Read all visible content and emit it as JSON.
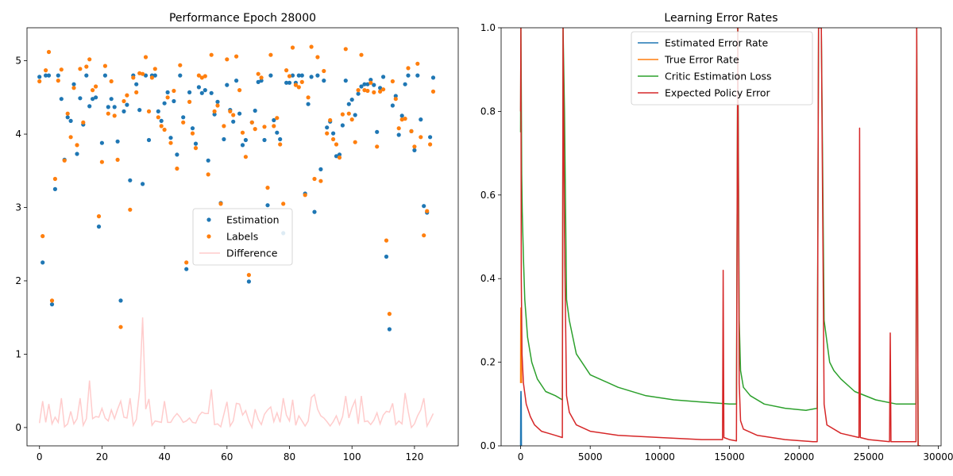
{
  "chart_data": [
    {
      "type": "scatter",
      "title": "Performance Epoch 28000",
      "xlim": [
        -4,
        134
      ],
      "ylim": [
        -0.25,
        5.45
      ],
      "x_ticks": [
        0,
        20,
        40,
        60,
        80,
        100,
        120
      ],
      "y_ticks": [
        0,
        1,
        2,
        3,
        4,
        5
      ],
      "legend_position": "center-right",
      "series": [
        {
          "name": "Estimation",
          "kind": "scatter",
          "color": "#1f77b4",
          "values": [
            4.78,
            2.25,
            4.8,
            4.8,
            1.68,
            3.25,
            4.8,
            4.48,
            3.65,
            4.23,
            4.18,
            4.68,
            3.73,
            4.49,
            4.13,
            4.8,
            4.38,
            4.48,
            4.5,
            2.74,
            3.88,
            4.8,
            4.37,
            4.48,
            4.37,
            3.9,
            1.73,
            4.31,
            4.4,
            3.37,
            4.8,
            4.68,
            4.33,
            3.32,
            4.8,
            3.92,
            4.8,
            4.8,
            4.31,
            4.18,
            4.42,
            4.57,
            3.95,
            4.45,
            3.72,
            4.8,
            4.23,
            2.16,
            4.57,
            4.08,
            3.87,
            4.64,
            4.56,
            4.6,
            3.64,
            4.56,
            4.27,
            4.44,
            3.06,
            3.93,
            4.67,
            4.33,
            4.17,
            4.73,
            4.28,
            3.85,
            3.92,
            1.99,
            4.16,
            4.32,
            4.71,
            4.73,
            3.92,
            3.03,
            4.8,
            4.19,
            4.02,
            3.93,
            2.65,
            4.7,
            4.7,
            4.8,
            4.7,
            4.8,
            4.8,
            3.19,
            4.41,
            4.78,
            2.94,
            4.8,
            3.52,
            4.73,
            4.09,
            4.17,
            4.01,
            3.7,
            3.72,
            4.12,
            4.73,
            4.41,
            4.47,
            4.26,
            4.55,
            4.65,
            4.68,
            4.68,
            4.74,
            4.67,
            4.03,
            4.63,
            4.78,
            2.33,
            1.34,
            4.39,
            4.52,
            3.99,
            4.25,
            4.68,
            4.8,
            4.04,
            3.78,
            4.8,
            4.2,
            3.02,
            2.93,
            3.96,
            4.77
          ]
        },
        {
          "name": "Labels",
          "kind": "scatter",
          "color": "#ff7f0e",
          "values": [
            4.72,
            2.61,
            4.87,
            5.12,
            1.73,
            3.39,
            4.73,
            4.88,
            3.64,
            4.28,
            3.96,
            4.63,
            3.85,
            4.89,
            4.16,
            4.92,
            5.02,
            4.6,
            4.65,
            2.88,
            3.62,
            4.93,
            4.28,
            4.72,
            4.25,
            3.65,
            1.37,
            4.45,
            4.53,
            2.97,
            4.77,
            4.57,
            4.83,
            4.82,
            5.05,
            4.31,
            4.77,
            4.89,
            4.23,
            4.11,
            4.06,
            4.5,
            3.88,
            4.59,
            3.53,
            4.94,
            4.16,
            2.25,
            4.44,
            4.01,
            3.81,
            4.8,
            4.77,
            4.79,
            3.45,
            5.08,
            4.31,
            4.39,
            3.05,
            4.11,
            5.02,
            4.31,
            4.26,
            5.06,
            4.6,
            4.02,
            3.69,
            2.08,
            4.16,
            4.07,
            4.82,
            4.77,
            4.1,
            3.27,
            5.08,
            4.11,
            4.22,
            3.86,
            3.05,
            4.87,
            4.79,
            5.18,
            4.67,
            4.64,
            4.71,
            3.17,
            4.5,
            5.19,
            3.39,
            5.05,
            3.36,
            4.86,
            4.01,
            4.19,
            3.93,
            3.86,
            3.68,
            4.27,
            5.16,
            4.28,
            4.2,
            3.89,
            4.6,
            5.08,
            4.6,
            4.59,
            4.7,
            4.57,
            3.83,
            4.58,
            4.61,
            2.55,
            1.55,
            4.72,
            4.48,
            4.08,
            4.2,
            4.21,
            4.9,
            4.04,
            3.83,
            4.96,
            3.96,
            2.62,
            2.95,
            3.86,
            4.58
          ]
        },
        {
          "name": "Difference",
          "kind": "line",
          "color": "#ffcccc",
          "values": [
            0.06,
            0.36,
            0.07,
            0.32,
            0.05,
            0.14,
            0.07,
            0.4,
            0.01,
            0.05,
            0.22,
            0.05,
            0.12,
            0.4,
            0.03,
            0.12,
            0.64,
            0.12,
            0.15,
            0.14,
            0.26,
            0.13,
            0.09,
            0.24,
            0.12,
            0.25,
            0.36,
            0.14,
            0.13,
            0.4,
            0.03,
            0.11,
            0.5,
            1.5,
            0.25,
            0.39,
            0.03,
            0.09,
            0.08,
            0.07,
            0.36,
            0.07,
            0.07,
            0.14,
            0.19,
            0.14,
            0.07,
            0.09,
            0.13,
            0.07,
            0.06,
            0.16,
            0.21,
            0.19,
            0.19,
            0.52,
            0.04,
            0.05,
            0.01,
            0.18,
            0.35,
            0.02,
            0.09,
            0.33,
            0.32,
            0.17,
            0.23,
            0.09,
            0.0,
            0.25,
            0.11,
            0.04,
            0.18,
            0.24,
            0.28,
            0.08,
            0.2,
            0.07,
            0.4,
            0.17,
            0.09,
            0.38,
            0.03,
            0.16,
            0.09,
            0.02,
            0.09,
            0.41,
            0.45,
            0.25,
            0.16,
            0.13,
            0.08,
            0.02,
            0.08,
            0.16,
            0.04,
            0.15,
            0.43,
            0.13,
            0.27,
            0.37,
            0.05,
            0.43,
            0.08,
            0.09,
            0.04,
            0.1,
            0.2,
            0.05,
            0.17,
            0.22,
            0.21,
            0.33,
            0.04,
            0.09,
            0.05,
            0.47,
            0.22,
            0.0,
            0.05,
            0.16,
            0.24,
            0.4,
            0.02,
            0.1,
            0.19
          ]
        }
      ]
    },
    {
      "type": "line",
      "title": "Learning Error Rates",
      "xlim": [
        -1400,
        30200
      ],
      "ylim": [
        0,
        1
      ],
      "x_ticks": [
        0,
        5000,
        10000,
        15000,
        20000,
        25000,
        30000
      ],
      "y_ticks": [
        0.0,
        0.2,
        0.4,
        0.6,
        0.8,
        1.0
      ],
      "legend_position": "upper-center",
      "series": [
        {
          "name": "Estimated Error Rate",
          "color": "#1f77b4",
          "x": [
            0,
            5,
            10,
            20,
            30,
            40,
            50,
            60
          ],
          "y": [
            0.0,
            0.05,
            0.1,
            0.13,
            0.13,
            0.12,
            0.1,
            0.0
          ]
        },
        {
          "name": "True Error Rate",
          "color": "#ff7f0e",
          "x": [
            0,
            10,
            20,
            40,
            60,
            80
          ],
          "y": [
            0.15,
            0.3,
            0.33,
            0.25,
            0.18,
            0.15
          ]
        },
        {
          "name": "Critic Estimation Loss",
          "color": "#2ca02c",
          "x": [
            0,
            20,
            50,
            80,
            120,
            200,
            300,
            500,
            800,
            1200,
            1800,
            2500,
            3000,
            3050,
            3150,
            3300,
            3500,
            4000,
            5000,
            7000,
            9000,
            11000,
            13000,
            15000,
            15500,
            15600,
            15700,
            15800,
            16000,
            16500,
            17500,
            19000,
            20500,
            21300,
            21400,
            21600,
            21800,
            22000,
            22200,
            22500,
            23000,
            24000,
            25500,
            27000,
            28000,
            28400,
            28450,
            28550,
            28700
          ],
          "y": [
            0.75,
            1.0,
            0.85,
            0.65,
            0.56,
            0.45,
            0.35,
            0.26,
            0.2,
            0.16,
            0.13,
            0.12,
            0.11,
            1.0,
            0.8,
            0.35,
            0.3,
            0.22,
            0.17,
            0.14,
            0.12,
            0.11,
            0.105,
            0.1,
            0.1,
            1.0,
            0.3,
            0.18,
            0.14,
            0.12,
            0.1,
            0.09,
            0.085,
            0.09,
            1.0,
            1.0,
            0.3,
            0.25,
            0.2,
            0.18,
            0.16,
            0.13,
            0.11,
            0.1,
            0.1,
            0.1,
            1.0,
            0.0,
            0.0
          ]
        },
        {
          "name": "Expected Policy Error",
          "color": "#d62728",
          "x": [
            0,
            20,
            50,
            100,
            200,
            400,
            700,
            1000,
            1500,
            2000,
            2500,
            3000,
            3050,
            3150,
            3300,
            3500,
            4000,
            5000,
            7000,
            10000,
            13000,
            14500,
            14550,
            14600,
            15000,
            15500,
            15600,
            15700,
            15800,
            16000,
            17000,
            19000,
            21000,
            21300,
            21400,
            21600,
            21800,
            22000,
            23000,
            24300,
            24350,
            24400,
            25000,
            26500,
            26550,
            26600,
            28000,
            28400,
            28450,
            28550,
            28700
          ],
          "y": [
            0.8,
            1.0,
            0.4,
            0.22,
            0.15,
            0.1,
            0.07,
            0.05,
            0.035,
            0.03,
            0.025,
            0.02,
            1.0,
            0.5,
            0.12,
            0.08,
            0.05,
            0.035,
            0.025,
            0.02,
            0.015,
            0.015,
            0.42,
            0.02,
            0.015,
            0.012,
            1.0,
            0.15,
            0.06,
            0.04,
            0.025,
            0.015,
            0.01,
            0.01,
            1.0,
            1.0,
            0.1,
            0.05,
            0.03,
            0.02,
            0.76,
            0.02,
            0.015,
            0.01,
            0.27,
            0.01,
            0.01,
            0.01,
            1.0,
            0.0,
            0.0
          ]
        }
      ]
    }
  ]
}
